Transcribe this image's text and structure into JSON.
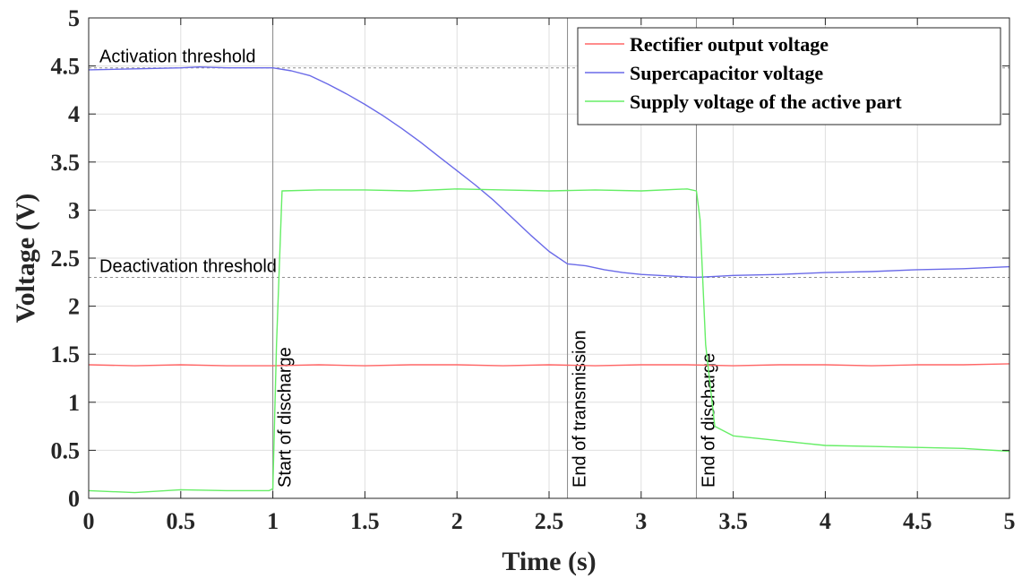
{
  "chart_data": {
    "type": "line",
    "xlabel": "Time (s)",
    "ylabel": "Voltage (V)",
    "xlim": [
      0,
      5
    ],
    "ylim": [
      0,
      5
    ],
    "xticks": [
      0,
      0.5,
      1,
      1.5,
      2,
      2.5,
      3,
      3.5,
      4,
      4.5,
      5
    ],
    "xtick_labels": [
      "0",
      "0.5",
      "1",
      "1.5",
      "2",
      "2.5",
      "3",
      "3.5",
      "4",
      "4.5",
      "5"
    ],
    "yticks": [
      0,
      0.5,
      1,
      1.5,
      2,
      2.5,
      3,
      3.5,
      4,
      4.5,
      5
    ],
    "ytick_labels": [
      "0",
      "0.5",
      "1",
      "1.5",
      "2",
      "2.5",
      "3",
      "3.5",
      "4",
      "4.5",
      "5"
    ],
    "grid": true,
    "legend_position": "top-right",
    "series": [
      {
        "name": "Rectifier output voltage",
        "color": "#ff6666",
        "x": [
          0,
          0.25,
          0.5,
          0.75,
          1,
          1.25,
          1.5,
          1.75,
          2,
          2.25,
          2.5,
          2.75,
          3,
          3.25,
          3.5,
          3.75,
          4,
          4.25,
          4.5,
          4.75,
          5
        ],
        "y": [
          1.39,
          1.38,
          1.39,
          1.38,
          1.38,
          1.39,
          1.38,
          1.39,
          1.39,
          1.38,
          1.39,
          1.38,
          1.39,
          1.39,
          1.38,
          1.39,
          1.39,
          1.38,
          1.39,
          1.39,
          1.4
        ]
      },
      {
        "name": "Supercapacitor voltage",
        "color": "#6a6ae8",
        "x": [
          0,
          0.25,
          0.5,
          0.6,
          0.75,
          1,
          1.1,
          1.2,
          1.3,
          1.4,
          1.5,
          1.6,
          1.7,
          1.8,
          1.9,
          2,
          2.1,
          2.2,
          2.3,
          2.4,
          2.5,
          2.6,
          2.7,
          2.8,
          2.9,
          3,
          3.1,
          3.2,
          3.3,
          3.4,
          3.5,
          3.75,
          4,
          4.25,
          4.5,
          4.75,
          5
        ],
        "y": [
          4.46,
          4.47,
          4.48,
          4.49,
          4.48,
          4.48,
          4.45,
          4.4,
          4.31,
          4.21,
          4.1,
          3.98,
          3.85,
          3.71,
          3.56,
          3.41,
          3.26,
          3.1,
          2.92,
          2.74,
          2.57,
          2.44,
          2.42,
          2.38,
          2.35,
          2.33,
          2.32,
          2.31,
          2.3,
          2.31,
          2.32,
          2.33,
          2.35,
          2.36,
          2.38,
          2.39,
          2.41
        ]
      },
      {
        "name": "Supply voltage of the active part",
        "color": "#66ee66",
        "x": [
          0,
          0.25,
          0.5,
          0.75,
          0.98,
          1,
          1.02,
          1.05,
          1.25,
          1.5,
          1.75,
          2,
          2.25,
          2.5,
          2.75,
          3,
          3.25,
          3.3,
          3.32,
          3.35,
          3.4,
          3.5,
          3.75,
          4,
          4.25,
          4.5,
          4.75,
          5
        ],
        "y": [
          0.08,
          0.06,
          0.09,
          0.08,
          0.08,
          0.1,
          1.6,
          3.2,
          3.21,
          3.21,
          3.2,
          3.22,
          3.21,
          3.2,
          3.21,
          3.2,
          3.22,
          3.2,
          2.9,
          1.6,
          0.75,
          0.65,
          0.6,
          0.55,
          0.54,
          0.53,
          0.52,
          0.49
        ]
      }
    ],
    "reference_lines": [
      {
        "value": 4.48,
        "label": "Activation threshold"
      },
      {
        "value": 2.3,
        "label": "Deactivation threshold"
      }
    ],
    "event_markers": [
      {
        "x": 1.0,
        "label": "Start of discharge"
      },
      {
        "x": 2.6,
        "label": "End of transmission"
      },
      {
        "x": 3.3,
        "label": "End of discharge"
      }
    ]
  }
}
